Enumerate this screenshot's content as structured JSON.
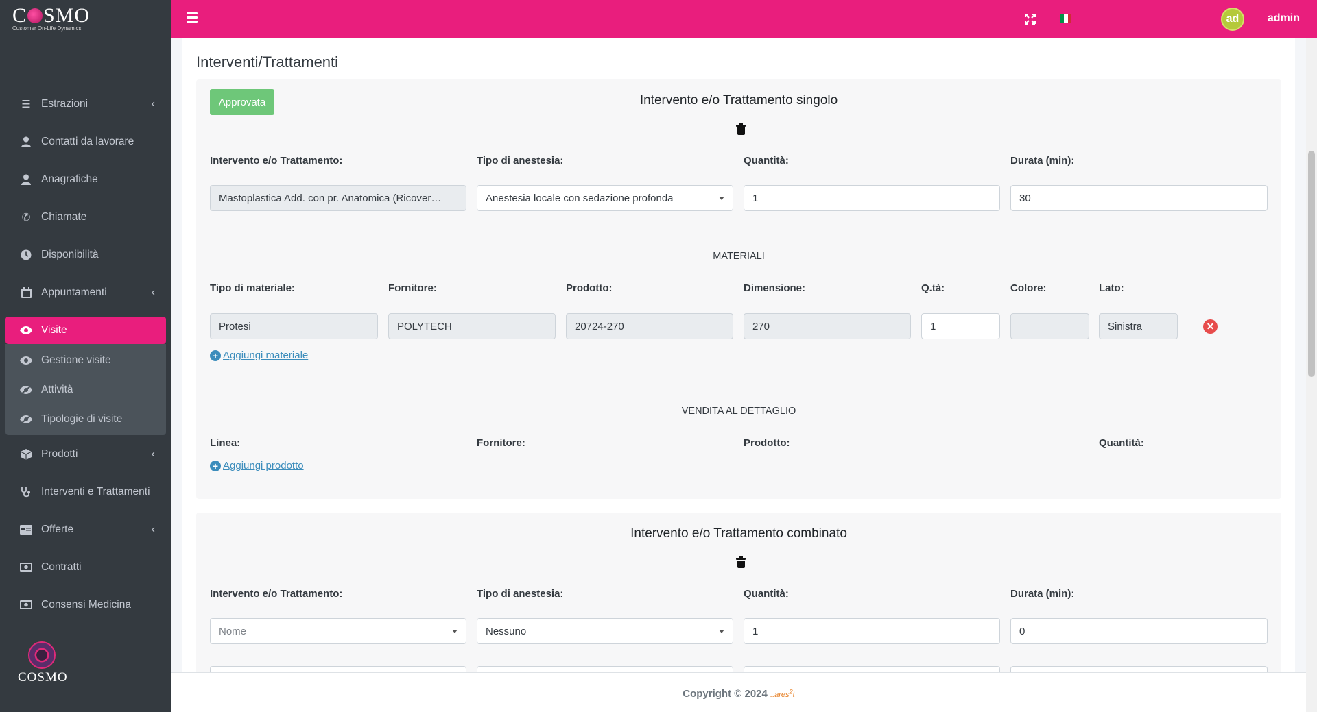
{
  "brand": {
    "name": "COSMO",
    "tagline": "Customer On-Life Dynamics"
  },
  "sidebar": {
    "items": [
      {
        "label": "Estrazioni",
        "icon": "sliders-icon",
        "has_submenu": true
      },
      {
        "label": "Contatti da lavorare",
        "icon": "user-icon"
      },
      {
        "label": "Anagrafiche",
        "icon": "user-icon"
      },
      {
        "label": "Chiamate",
        "icon": "phone-icon"
      },
      {
        "label": "Disponibilità",
        "icon": "clock-icon"
      },
      {
        "label": "Appuntamenti",
        "icon": "calendar-icon",
        "has_submenu": true
      },
      {
        "label": "Visite",
        "icon": "eye-icon",
        "active": true
      },
      {
        "label": "Prodotti",
        "icon": "box-icon",
        "has_submenu": true
      },
      {
        "label": "Interventi e Trattamenti",
        "icon": "stethoscope-icon"
      },
      {
        "label": "Offerte",
        "icon": "offer-card-icon",
        "has_submenu": true
      },
      {
        "label": "Contratti",
        "icon": "money-icon"
      },
      {
        "label": "Consensi Medicina",
        "icon": "money-icon"
      }
    ],
    "visite_submenu": [
      {
        "label": "Gestione visite",
        "icon": "eye-icon"
      },
      {
        "label": "Attività",
        "icon": "eye-slash-icon"
      },
      {
        "label": "Tipologie di visite",
        "icon": "eye-slash-icon"
      }
    ],
    "bottom_logo": "COSMO"
  },
  "topbar": {
    "username": "admin",
    "avatar_initials": "ad",
    "accent": "#e91e7d"
  },
  "page": {
    "title": "Interventi/Trattamenti"
  },
  "single": {
    "status_badge": "Approvata",
    "title": "Intervento e/o Trattamento singolo",
    "labels": {
      "treatment": "Intervento e/o Trattamento:",
      "anesthesia": "Tipo di anestesia:",
      "quantity": "Quantità:",
      "duration": "Durata (min):"
    },
    "values": {
      "treatment": "Mastoplastica Add. con pr. Anatomica (Ricover…",
      "anesthesia": "Anestesia locale con sedazione profonda",
      "quantity": "1",
      "duration": "30"
    },
    "materials": {
      "heading": "MATERIALI",
      "labels": {
        "type": "Tipo di materiale:",
        "supplier": "Fornitore:",
        "product": "Prodotto:",
        "size": "Dimensione:",
        "qty": "Q.tà:",
        "color": "Colore:",
        "side": "Lato:"
      },
      "row": {
        "type": "Protesi",
        "supplier": "POLYTECH",
        "product": "20724-270",
        "size": "270",
        "qty": "1",
        "color": "",
        "side": "Sinistra"
      },
      "add_link": "Aggiungi materiale"
    },
    "retail": {
      "heading": "VENDITA AL DETTAGLIO",
      "labels": {
        "line": "Linea:",
        "supplier": "Fornitore:",
        "product": "Prodotto:",
        "quantity": "Quantità:"
      },
      "add_link": "Aggiungi prodotto"
    }
  },
  "combined": {
    "title": "Intervento e/o Trattamento combinato",
    "labels": {
      "treatment": "Intervento e/o Trattamento:",
      "anesthesia": "Tipo di anestesia:",
      "quantity": "Quantità:",
      "duration": "Durata (min):"
    },
    "values": {
      "treatment_placeholder": "Nome",
      "anesthesia": "Nessuno",
      "quantity": "1",
      "duration": "0"
    }
  },
  "footer": {
    "copyright": "Copyright © 2024",
    "vendor": "ares"
  }
}
